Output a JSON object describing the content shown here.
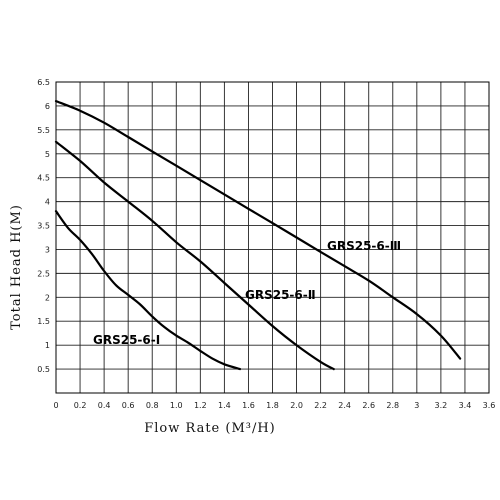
{
  "chart_data": {
    "type": "line",
    "xlabel": "Flow Rate (M³/H)",
    "ylabel": "Total Head H(M)",
    "xlim": [
      0,
      3.6
    ],
    "ylim": [
      0,
      6.5
    ],
    "x_ticks": [
      "0",
      "0.2",
      "0.4",
      "0.6",
      "0.8",
      "1.0",
      "1.2",
      "1.4",
      "1.6",
      "1.8",
      "2.0",
      "2.2",
      "2.4",
      "2.6",
      "2.8",
      "3",
      "3.2",
      "3.4",
      "3.6"
    ],
    "x_tick_values": [
      0,
      0.2,
      0.4,
      0.6,
      0.8,
      1.0,
      1.2,
      1.4,
      1.6,
      1.8,
      2.0,
      2.2,
      2.4,
      2.6,
      2.8,
      3.0,
      3.2,
      3.4,
      3.6
    ],
    "y_ticks": [
      "0.5",
      "1",
      "1.5",
      "2",
      "2.5",
      "3",
      "3.5",
      "4",
      "4.5",
      "5",
      "5.5",
      "6",
      "6.5"
    ],
    "y_tick_values": [
      0.5,
      1,
      1.5,
      2,
      2.5,
      3,
      3.5,
      4,
      4.5,
      5,
      5.5,
      6,
      6.5
    ],
    "grid": true,
    "series": [
      {
        "name": "GRS25-6-Ⅰ",
        "x": [
          0,
          0.1,
          0.2,
          0.3,
          0.4,
          0.5,
          0.6,
          0.7,
          0.8,
          0.9,
          1.0,
          1.1,
          1.2,
          1.3,
          1.4,
          1.53
        ],
        "y": [
          3.8,
          3.45,
          3.2,
          2.9,
          2.55,
          2.25,
          2.05,
          1.85,
          1.6,
          1.38,
          1.2,
          1.05,
          0.88,
          0.72,
          0.6,
          0.5
        ]
      },
      {
        "name": "GRS25-6-Ⅱ",
        "x": [
          0,
          0.2,
          0.4,
          0.6,
          0.8,
          1.0,
          1.2,
          1.4,
          1.6,
          1.8,
          2.0,
          2.2,
          2.31
        ],
        "y": [
          5.25,
          4.85,
          4.4,
          4.0,
          3.6,
          3.15,
          2.75,
          2.3,
          1.85,
          1.4,
          1.0,
          0.65,
          0.5
        ]
      },
      {
        "name": "GRS25-6-Ⅲ",
        "x": [
          0,
          0.2,
          0.4,
          0.6,
          0.8,
          1.0,
          1.2,
          1.4,
          1.6,
          1.8,
          2.0,
          2.2,
          2.4,
          2.6,
          2.8,
          3.0,
          3.2,
          3.36
        ],
        "y": [
          6.1,
          5.9,
          5.65,
          5.35,
          5.05,
          4.75,
          4.45,
          4.15,
          3.85,
          3.55,
          3.25,
          2.95,
          2.65,
          2.35,
          2.0,
          1.65,
          1.2,
          0.72
        ]
      }
    ]
  }
}
